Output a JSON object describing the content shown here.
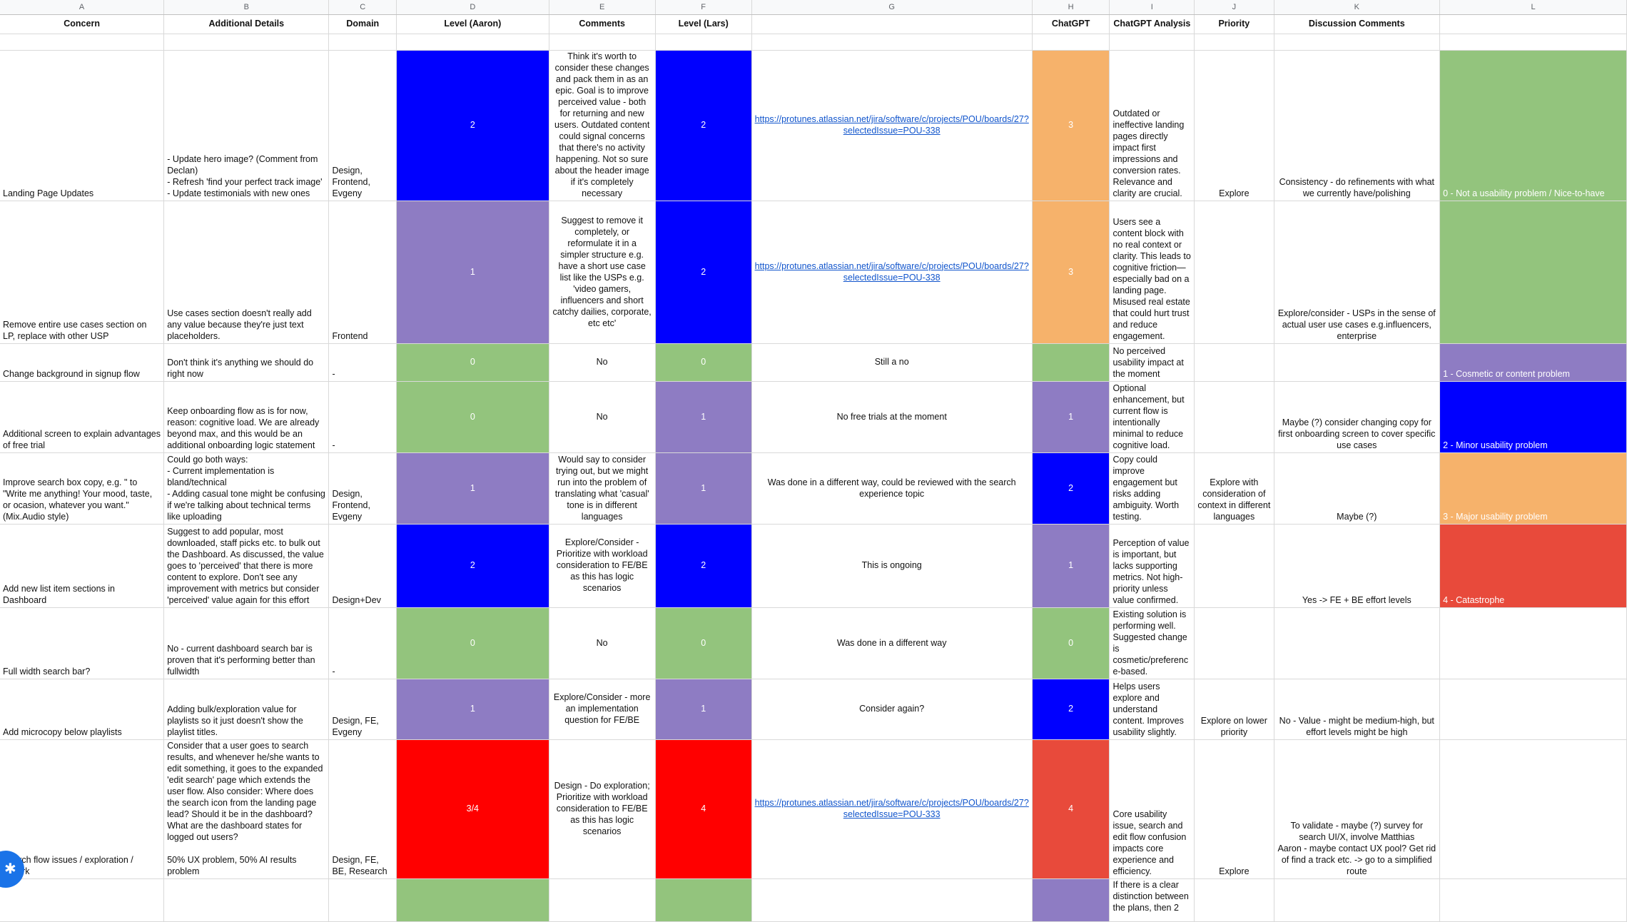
{
  "sheet": {
    "column_letters": [
      "A",
      "B",
      "C",
      "D",
      "E",
      "F",
      "G",
      "H",
      "I",
      "J",
      "K",
      "L"
    ],
    "headers": [
      "Concern",
      "Additional Details",
      "Domain",
      "Level (Aaron)",
      "Comments",
      "Level (Lars)",
      "",
      "ChatGPT",
      "ChatGPT Analysis",
      "Priority",
      "Discussion Comments",
      ""
    ],
    "rows": [
      {
        "concern": "Landing Page Updates",
        "details": "- Update hero image? (Comment from Declan)\n- Refresh 'find your perfect track image'\n- Update testimonials with new ones",
        "domain": "Design,\nFrontend,\nEvgeny",
        "level_aaron": "2",
        "comments": "Think it's worth to consider these changes and pack them in as an epic. Goal is to improve perceived value - both for returning and new users. Outdated content could signal concerns that there's no activity happening. Not so sure about the header image if it's completely necessary",
        "level_lars": "2",
        "g": "https://protunes.atlassian.net/jira/software/c/projects/POU/boards/27?selectedIssue=POU-338",
        "chatgpt": "3",
        "analysis": "Outdated or ineffective landing pages directly impact first impressions and conversion rates. Relevance and clarity are crucial.",
        "priority": "Explore",
        "discussion": "Consistency - do refinements with what we currently have/polishing",
        "legend": "0 - Not a usability problem / Nice-to-have"
      },
      {
        "concern": "Remove entire use cases section on LP, replace with other USP",
        "details": "Use cases section doesn't really add any value because they're just text placeholders.",
        "domain": "Frontend",
        "level_aaron": "1",
        "comments": "Suggest to remove it completely, or reformulate it in a simpler structure e.g. have a short use case list like the USPs e.g. 'video gamers, influencers and short catchy dailies, corporate, etc etc'",
        "level_lars": "2",
        "g": "https://protunes.atlassian.net/jira/software/c/projects/POU/boards/27?selectedIssue=POU-338",
        "chatgpt": "3",
        "analysis": "Users see a content block with no real context or clarity. This leads to cognitive friction—especially bad on a landing page. Misused real estate that could hurt trust and reduce engagement.",
        "priority": "",
        "discussion": "Explore/consider - USPs in the sense of actual user use cases e.g.influencers, enterprise",
        "legend": ""
      },
      {
        "concern": "Change background in signup flow",
        "details": "Don't think it's anything we should do right now",
        "domain": "-",
        "level_aaron": "0",
        "comments": "No",
        "level_lars": "0",
        "g": "Still a no",
        "chatgpt": "",
        "analysis": "No perceived usability impact at the moment",
        "priority": "",
        "discussion": "",
        "legend": "1 - Cosmetic or content problem"
      },
      {
        "concern": "Additional screen to explain advantages of free trial",
        "details": "Keep onboarding flow as is for now, reason: cognitive load. We are already beyond max, and this would be an additional onboarding logic statement",
        "domain": "-",
        "level_aaron": "0",
        "comments": "No",
        "level_lars": "1",
        "g": "No free trials at the moment",
        "chatgpt": "1",
        "analysis": "Optional enhancement, but current flow is intentionally minimal to reduce cognitive load.",
        "priority": "",
        "discussion": "Maybe (?) consider changing copy for first onboarding screen to cover specific use cases",
        "legend": "2 - Minor usability problem"
      },
      {
        "concern": "Improve search box copy, e.g. \" to \"Write me anything! Your mood, taste, or ocasion, whatever you want.\" (Mix.Audio style)",
        "details": "Could go both ways:\n- Current implementation is bland/technical\n- Adding casual tone might be confusing if we're talking about technical terms like uploading",
        "domain": "Design,\nFrontend,\nEvgeny",
        "level_aaron": "1",
        "comments": "Would say to consider trying out, but we might run into the problem of translating what 'casual' tone is in different languages",
        "level_lars": "1",
        "g": "Was done in a different way, could be reviewed with the search experience topic",
        "chatgpt": "2",
        "analysis": "Copy could improve engagement but risks adding ambiguity. Worth testing.",
        "priority": "Explore with consideration of context in different languages",
        "discussion": "Maybe (?)",
        "legend": "3 - Major usability problem"
      },
      {
        "concern": "Add new list item sections in Dashboard",
        "details": "Suggest to add popular, most downloaded, staff picks etc. to bulk out the Dashboard. As discussed, the value goes to 'perceived' that there is more content to explore. Don't see any improvement with metrics but consider 'perceived' value again for this effort",
        "domain": "Design+Dev",
        "level_aaron": "2",
        "comments": "Explore/Consider - Prioritize with workload consideration to FE/BE as this has logic scenarios",
        "level_lars": "2",
        "g": "This is ongoing",
        "chatgpt": "1",
        "analysis": "Perception of value is important, but lacks supporting metrics. Not high-priority unless value confirmed.",
        "priority": "",
        "discussion": "Yes -> FE + BE effort levels",
        "legend": "4 - Catastrophe"
      },
      {
        "concern": "Full width search bar?",
        "details": "No - current dashboard search bar is proven that it's performing better than fullwidth",
        "domain": "-",
        "level_aaron": "0",
        "comments": "No",
        "level_lars": "0",
        "g": "Was done in a different way",
        "chatgpt": "0",
        "analysis": "Existing solution is performing well. Suggested change is cosmetic/preferenc e-based.",
        "priority": "",
        "discussion": "",
        "legend": ""
      },
      {
        "concern": "Add microcopy below playlists",
        "details": "Adding bulk/exploration value for playlists so it just doesn't show the playlist titles.",
        "domain": "Design, FE,\nEvgeny",
        "level_aaron": "1",
        "comments": "Explore/Consider - more an implementation question for FE/BE",
        "level_lars": "1",
        "g": "Consider again?",
        "chatgpt": "2",
        "analysis": "Helps users explore and understand content. Improves usability slightly.",
        "priority": "Explore on lower priority",
        "discussion": "No - Value - might be medium-high, but effort levels might be high",
        "legend": ""
      },
      {
        "concern": "Search flow issues / exploration / rework",
        "details": "Consider that a user goes to search results, and whenever he/she wants to edit something, it goes to the expanded 'edit search' page which extends the user flow. Also consider: Where does the search icon from the landing page lead? Should it be in the dashboard? What are the dashboard states for logged out users?\n\n50% UX problem, 50% AI results problem",
        "domain": "Design, FE,\nBE, Research",
        "level_aaron": "3/4",
        "comments": "Design - Do exploration; Prioritize with workload consideration to FE/BE as this has logic scenarios",
        "level_lars": "4",
        "g": "https://protunes.atlassian.net/jira/software/c/projects/POU/boards/27?selectedIssue=POU-333",
        "chatgpt": "4",
        "analysis": "Core usability issue, search and edit flow confusion impacts core experience and efficiency.",
        "priority": "Explore",
        "discussion": "To validate - maybe (?) survey for search UI/X, involve Matthias\nAaron - maybe contact UX pool? Get rid of find a track etc. -> go to a simplified route",
        "legend": ""
      },
      {
        "concern": "",
        "details": "",
        "domain": "",
        "level_aaron": "",
        "comments": "",
        "level_lars": "",
        "g": "",
        "chatgpt": "",
        "analysis": "If there is a clear distinction between the plans, then 2",
        "priority": "",
        "discussion": "",
        "legend": ""
      }
    ],
    "colors": {
      "blue": "#0000ff",
      "purple": "#8e7cc3",
      "green": "#93c47d",
      "orange": "#f6b26b",
      "red": "#ff0000",
      "dark_red": "#e84a3b",
      "link": "#1155cc"
    }
  },
  "help_fab": {
    "icon": "asterisk-icon"
  }
}
